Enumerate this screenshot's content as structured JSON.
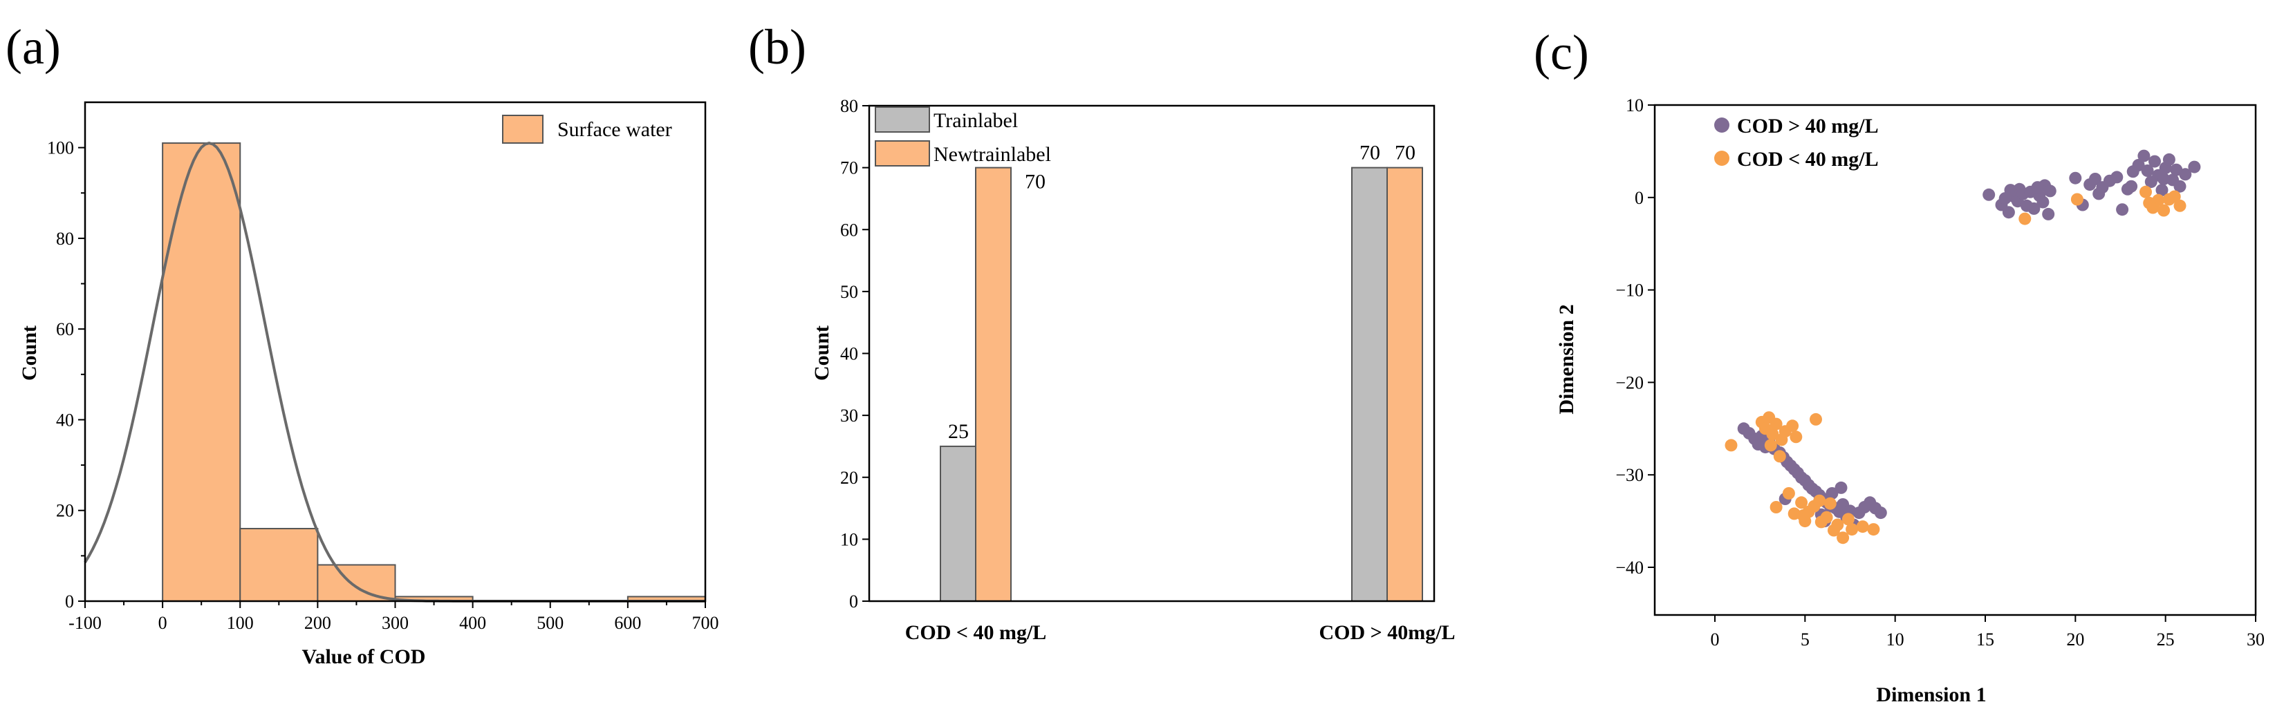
{
  "colors": {
    "orange_fill": "#fcb882",
    "gray_fill": "#bdbdbd",
    "bar_edge": "#555555",
    "curve": "#6a6a6a",
    "purple": "#7f6b94",
    "orange_dot": "#f7a04b"
  },
  "chart_data": [
    {
      "panel": "(a)",
      "type": "bar",
      "subtype": "histogram",
      "title": "",
      "xlabel": "Value of COD",
      "ylabel": "Count",
      "xlim": [
        -100,
        700
      ],
      "ylim": [
        0,
        110
      ],
      "xticks": [
        -100,
        0,
        100,
        200,
        300,
        400,
        500,
        600,
        700
      ],
      "yticks": [
        0,
        20,
        40,
        60,
        80,
        100
      ],
      "bins": [
        {
          "start": 0,
          "end": 100,
          "count": 101
        },
        {
          "start": 100,
          "end": 200,
          "count": 16
        },
        {
          "start": 200,
          "end": 300,
          "count": 8
        },
        {
          "start": 300,
          "end": 400,
          "count": 1
        },
        {
          "start": 400,
          "end": 500,
          "count": 0
        },
        {
          "start": 500,
          "end": 600,
          "count": 0
        },
        {
          "start": 600,
          "end": 700,
          "count": 1
        }
      ],
      "legend": [
        "Surface water"
      ],
      "legend_position": "top-right",
      "fit_curve": {
        "type": "normal",
        "mean": 60,
        "sd": 72,
        "peak": 101
      }
    },
    {
      "panel": "(b)",
      "type": "bar",
      "title": "",
      "xlabel": "",
      "ylabel": "Count",
      "ylim": [
        0,
        80
      ],
      "yticks": [
        0,
        10,
        20,
        30,
        40,
        50,
        60,
        70,
        80
      ],
      "categories": [
        "COD < 40 mg/L",
        "COD > 40mg/L"
      ],
      "series": [
        {
          "name": "Trainlabel",
          "values": [
            25,
            70
          ]
        },
        {
          "name": "Newtrainlabel",
          "values": [
            70,
            70
          ]
        }
      ],
      "value_labels": [
        "25",
        "70",
        "70",
        "70"
      ],
      "legend_position": "top-left"
    },
    {
      "panel": "(c)",
      "type": "scatter",
      "title": "",
      "xlabel": "Dimension 1",
      "ylabel": "Dimension 2",
      "xlim": [
        -3,
        30
      ],
      "ylim": [
        -45,
        10
      ],
      "xticks": [
        0,
        5,
        10,
        15,
        20,
        25,
        30
      ],
      "yticks": [
        10,
        0,
        -10,
        -20,
        -30,
        -40
      ],
      "legend_position": "top-left",
      "series": [
        {
          "name": "COD > 40 mg/L",
          "points": [
            [
              15.2,
              0.3
            ],
            [
              15.9,
              -0.8
            ],
            [
              16.3,
              -1.6
            ],
            [
              16.6,
              0.1
            ],
            [
              16.9,
              0.9
            ],
            [
              16.8,
              -0.4
            ],
            [
              17.1,
              0.4
            ],
            [
              17.3,
              -0.9
            ],
            [
              17.5,
              0.6
            ],
            [
              17.7,
              -1.2
            ],
            [
              18.0,
              0.2
            ],
            [
              18.2,
              -0.5
            ],
            [
              18.3,
              1.3
            ],
            [
              18.5,
              -1.8
            ],
            [
              18.6,
              0.7
            ],
            [
              16.4,
              0.8
            ],
            [
              17.9,
              1.1
            ],
            [
              16.1,
              -0.1
            ],
            [
              20.0,
              2.1
            ],
            [
              20.4,
              -0.8
            ],
            [
              20.8,
              1.4
            ],
            [
              21.1,
              2.0
            ],
            [
              21.5,
              1.1
            ],
            [
              21.9,
              1.8
            ],
            [
              22.3,
              2.2
            ],
            [
              22.6,
              -1.3
            ],
            [
              22.9,
              0.9
            ],
            [
              23.2,
              2.8
            ],
            [
              23.5,
              3.5
            ],
            [
              23.8,
              4.5
            ],
            [
              24.0,
              2.9
            ],
            [
              24.2,
              1.7
            ],
            [
              24.4,
              3.9
            ],
            [
              24.6,
              2.4
            ],
            [
              24.8,
              0.8
            ],
            [
              25.0,
              3.2
            ],
            [
              25.2,
              4.1
            ],
            [
              25.4,
              1.9
            ],
            [
              25.6,
              3.0
            ],
            [
              25.8,
              1.2
            ],
            [
              26.1,
              2.5
            ],
            [
              26.6,
              3.3
            ],
            [
              23.1,
              1.2
            ],
            [
              24.9,
              2.0
            ],
            [
              21.3,
              0.4
            ],
            [
              1.6,
              -25.0
            ],
            [
              1.9,
              -25.5
            ],
            [
              2.2,
              -26.1
            ],
            [
              2.4,
              -26.7
            ],
            [
              2.6,
              -25.8
            ],
            [
              2.8,
              -27.0
            ],
            [
              3.0,
              -26.4
            ],
            [
              3.3,
              -27.2
            ],
            [
              3.6,
              -27.6
            ],
            [
              3.8,
              -28.1
            ],
            [
              4.0,
              -28.6
            ],
            [
              4.2,
              -29.0
            ],
            [
              4.4,
              -29.4
            ],
            [
              4.6,
              -29.8
            ],
            [
              4.8,
              -30.3
            ],
            [
              5.0,
              -30.6
            ],
            [
              5.2,
              -31.1
            ],
            [
              5.4,
              -31.5
            ],
            [
              5.6,
              -31.8
            ],
            [
              5.8,
              -32.2
            ],
            [
              6.0,
              -32.6
            ],
            [
              6.2,
              -33.0
            ],
            [
              6.4,
              -33.4
            ],
            [
              6.5,
              -32.0
            ],
            [
              6.7,
              -33.6
            ],
            [
              6.9,
              -34.0
            ],
            [
              7.1,
              -33.2
            ],
            [
              7.3,
              -34.6
            ],
            [
              7.5,
              -33.9
            ],
            [
              7.7,
              -35.4
            ],
            [
              8.0,
              -34.1
            ],
            [
              8.3,
              -33.5
            ],
            [
              8.6,
              -33.0
            ],
            [
              8.9,
              -33.6
            ],
            [
              9.2,
              -34.1
            ],
            [
              6.1,
              -35.0
            ],
            [
              5.9,
              -34.3
            ],
            [
              7.0,
              -31.4
            ],
            [
              3.9,
              -32.6
            ]
          ]
        },
        {
          "name": "COD < 40 mg/L",
          "points": [
            [
              17.2,
              -2.3
            ],
            [
              20.1,
              -0.2
            ],
            [
              23.9,
              0.6
            ],
            [
              24.3,
              -1.1
            ],
            [
              24.6,
              -0.3
            ],
            [
              24.9,
              -1.4
            ],
            [
              25.2,
              -0.2
            ],
            [
              25.5,
              0.1
            ],
            [
              25.8,
              -0.9
            ],
            [
              24.1,
              -0.6
            ],
            [
              0.9,
              -26.8
            ],
            [
              2.6,
              -24.3
            ],
            [
              2.8,
              -25.0
            ],
            [
              3.0,
              -23.8
            ],
            [
              3.2,
              -25.6
            ],
            [
              3.4,
              -24.5
            ],
            [
              3.7,
              -26.2
            ],
            [
              3.9,
              -25.3
            ],
            [
              4.3,
              -24.7
            ],
            [
              5.6,
              -24.0
            ],
            [
              4.5,
              -25.9
            ],
            [
              3.1,
              -26.8
            ],
            [
              3.6,
              -28.0
            ],
            [
              3.4,
              -33.5
            ],
            [
              4.1,
              -32.0
            ],
            [
              4.4,
              -34.2
            ],
            [
              4.8,
              -33.0
            ],
            [
              5.0,
              -35.0
            ],
            [
              5.2,
              -34.0
            ],
            [
              5.5,
              -33.4
            ],
            [
              5.8,
              -32.8
            ],
            [
              5.9,
              -35.1
            ],
            [
              6.2,
              -34.6
            ],
            [
              6.6,
              -36.0
            ],
            [
              6.8,
              -35.4
            ],
            [
              7.1,
              -36.8
            ],
            [
              7.4,
              -34.8
            ],
            [
              7.6,
              -35.9
            ],
            [
              8.2,
              -35.6
            ],
            [
              8.8,
              -35.9
            ],
            [
              6.4,
              -33.1
            ],
            [
              4.9,
              -34.4
            ]
          ]
        }
      ]
    }
  ]
}
